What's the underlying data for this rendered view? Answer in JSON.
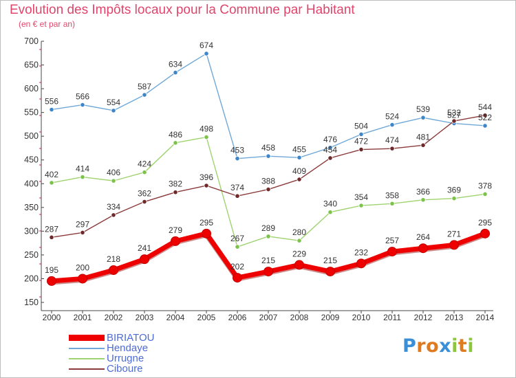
{
  "title": "Evolution des Impôts locaux pour la Commune par Habitant",
  "subtitle": "(en € et par an)",
  "logo": {
    "letters": [
      "P",
      "r",
      "o",
      "x",
      "i",
      "t",
      "i"
    ],
    "colors": [
      "#3a8fd6",
      "#e07a1e",
      "#e07a1e",
      "#3a8fd6",
      "#8cc63f",
      "#e07a1e",
      "#8cc63f"
    ]
  },
  "chart_data": {
    "type": "line",
    "x": [
      "2000",
      "2001",
      "2002",
      "2003",
      "2004",
      "2005",
      "2006",
      "2007",
      "2008",
      "2009",
      "2010",
      "2011",
      "2012",
      "2013",
      "2014"
    ],
    "ylim": [
      150,
      700
    ],
    "yticks": [
      150,
      200,
      250,
      300,
      350,
      400,
      450,
      500,
      550,
      600,
      650,
      700
    ],
    "grid": false,
    "legend_position": "bottom-left",
    "series": [
      {
        "name": "Hendaye",
        "color": "#6fa8d8",
        "marker": "#3f86c9",
        "thick": false,
        "values": [
          556,
          566,
          554,
          587,
          634,
          674,
          453,
          458,
          455,
          476,
          504,
          524,
          539,
          527,
          522
        ],
        "labels": [
          "556",
          "566",
          "554",
          "587",
          "634",
          "674",
          "453",
          "458",
          "455",
          "476",
          "504",
          "524",
          "539",
          "527",
          "522"
        ]
      },
      {
        "name": "Urrugne",
        "color": "#9fd36f",
        "marker": "#7dc24a",
        "thick": false,
        "values": [
          402,
          414,
          406,
          424,
          486,
          498,
          267,
          289,
          280,
          340,
          354,
          358,
          366,
          369,
          378
        ],
        "labels": [
          "402",
          "414",
          "406",
          "424",
          "486",
          "498",
          "267",
          "289",
          "280",
          "340",
          "354",
          "358",
          "366",
          "369",
          "378"
        ]
      },
      {
        "name": "Ciboure",
        "color": "#8a3a3a",
        "marker": "#6e2a2a",
        "thick": false,
        "values": [
          287,
          297,
          334,
          362,
          382,
          396,
          374,
          388,
          409,
          454,
          472,
          474,
          481,
          532,
          544
        ],
        "labels": [
          "287",
          "297",
          "334",
          "362",
          "382",
          "396",
          "374",
          "388",
          "409",
          "454",
          "472",
          "474",
          "481",
          "532",
          "544"
        ]
      },
      {
        "name": "BIRIATOU",
        "color": "#ee0000",
        "marker": "#ee0000",
        "thick": true,
        "values": [
          195,
          200,
          218,
          241,
          279,
          295,
          202,
          215,
          229,
          215,
          232,
          257,
          264,
          271,
          295
        ],
        "labels": [
          "195",
          "200",
          "218",
          "241",
          "279",
          "295",
          "202",
          "215",
          "229",
          "215",
          "232",
          "257",
          "264",
          "271",
          "295"
        ]
      }
    ]
  },
  "legend": {
    "items": [
      {
        "label": "BIRIATOU",
        "color": "#ee0000",
        "thick": true
      },
      {
        "label": "Hendaye",
        "color": "#6fa8d8",
        "thick": false
      },
      {
        "label": "Urrugne",
        "color": "#9fd36f",
        "thick": false
      },
      {
        "label": "Ciboure",
        "color": "#8a3a3a",
        "thick": false
      }
    ]
  }
}
